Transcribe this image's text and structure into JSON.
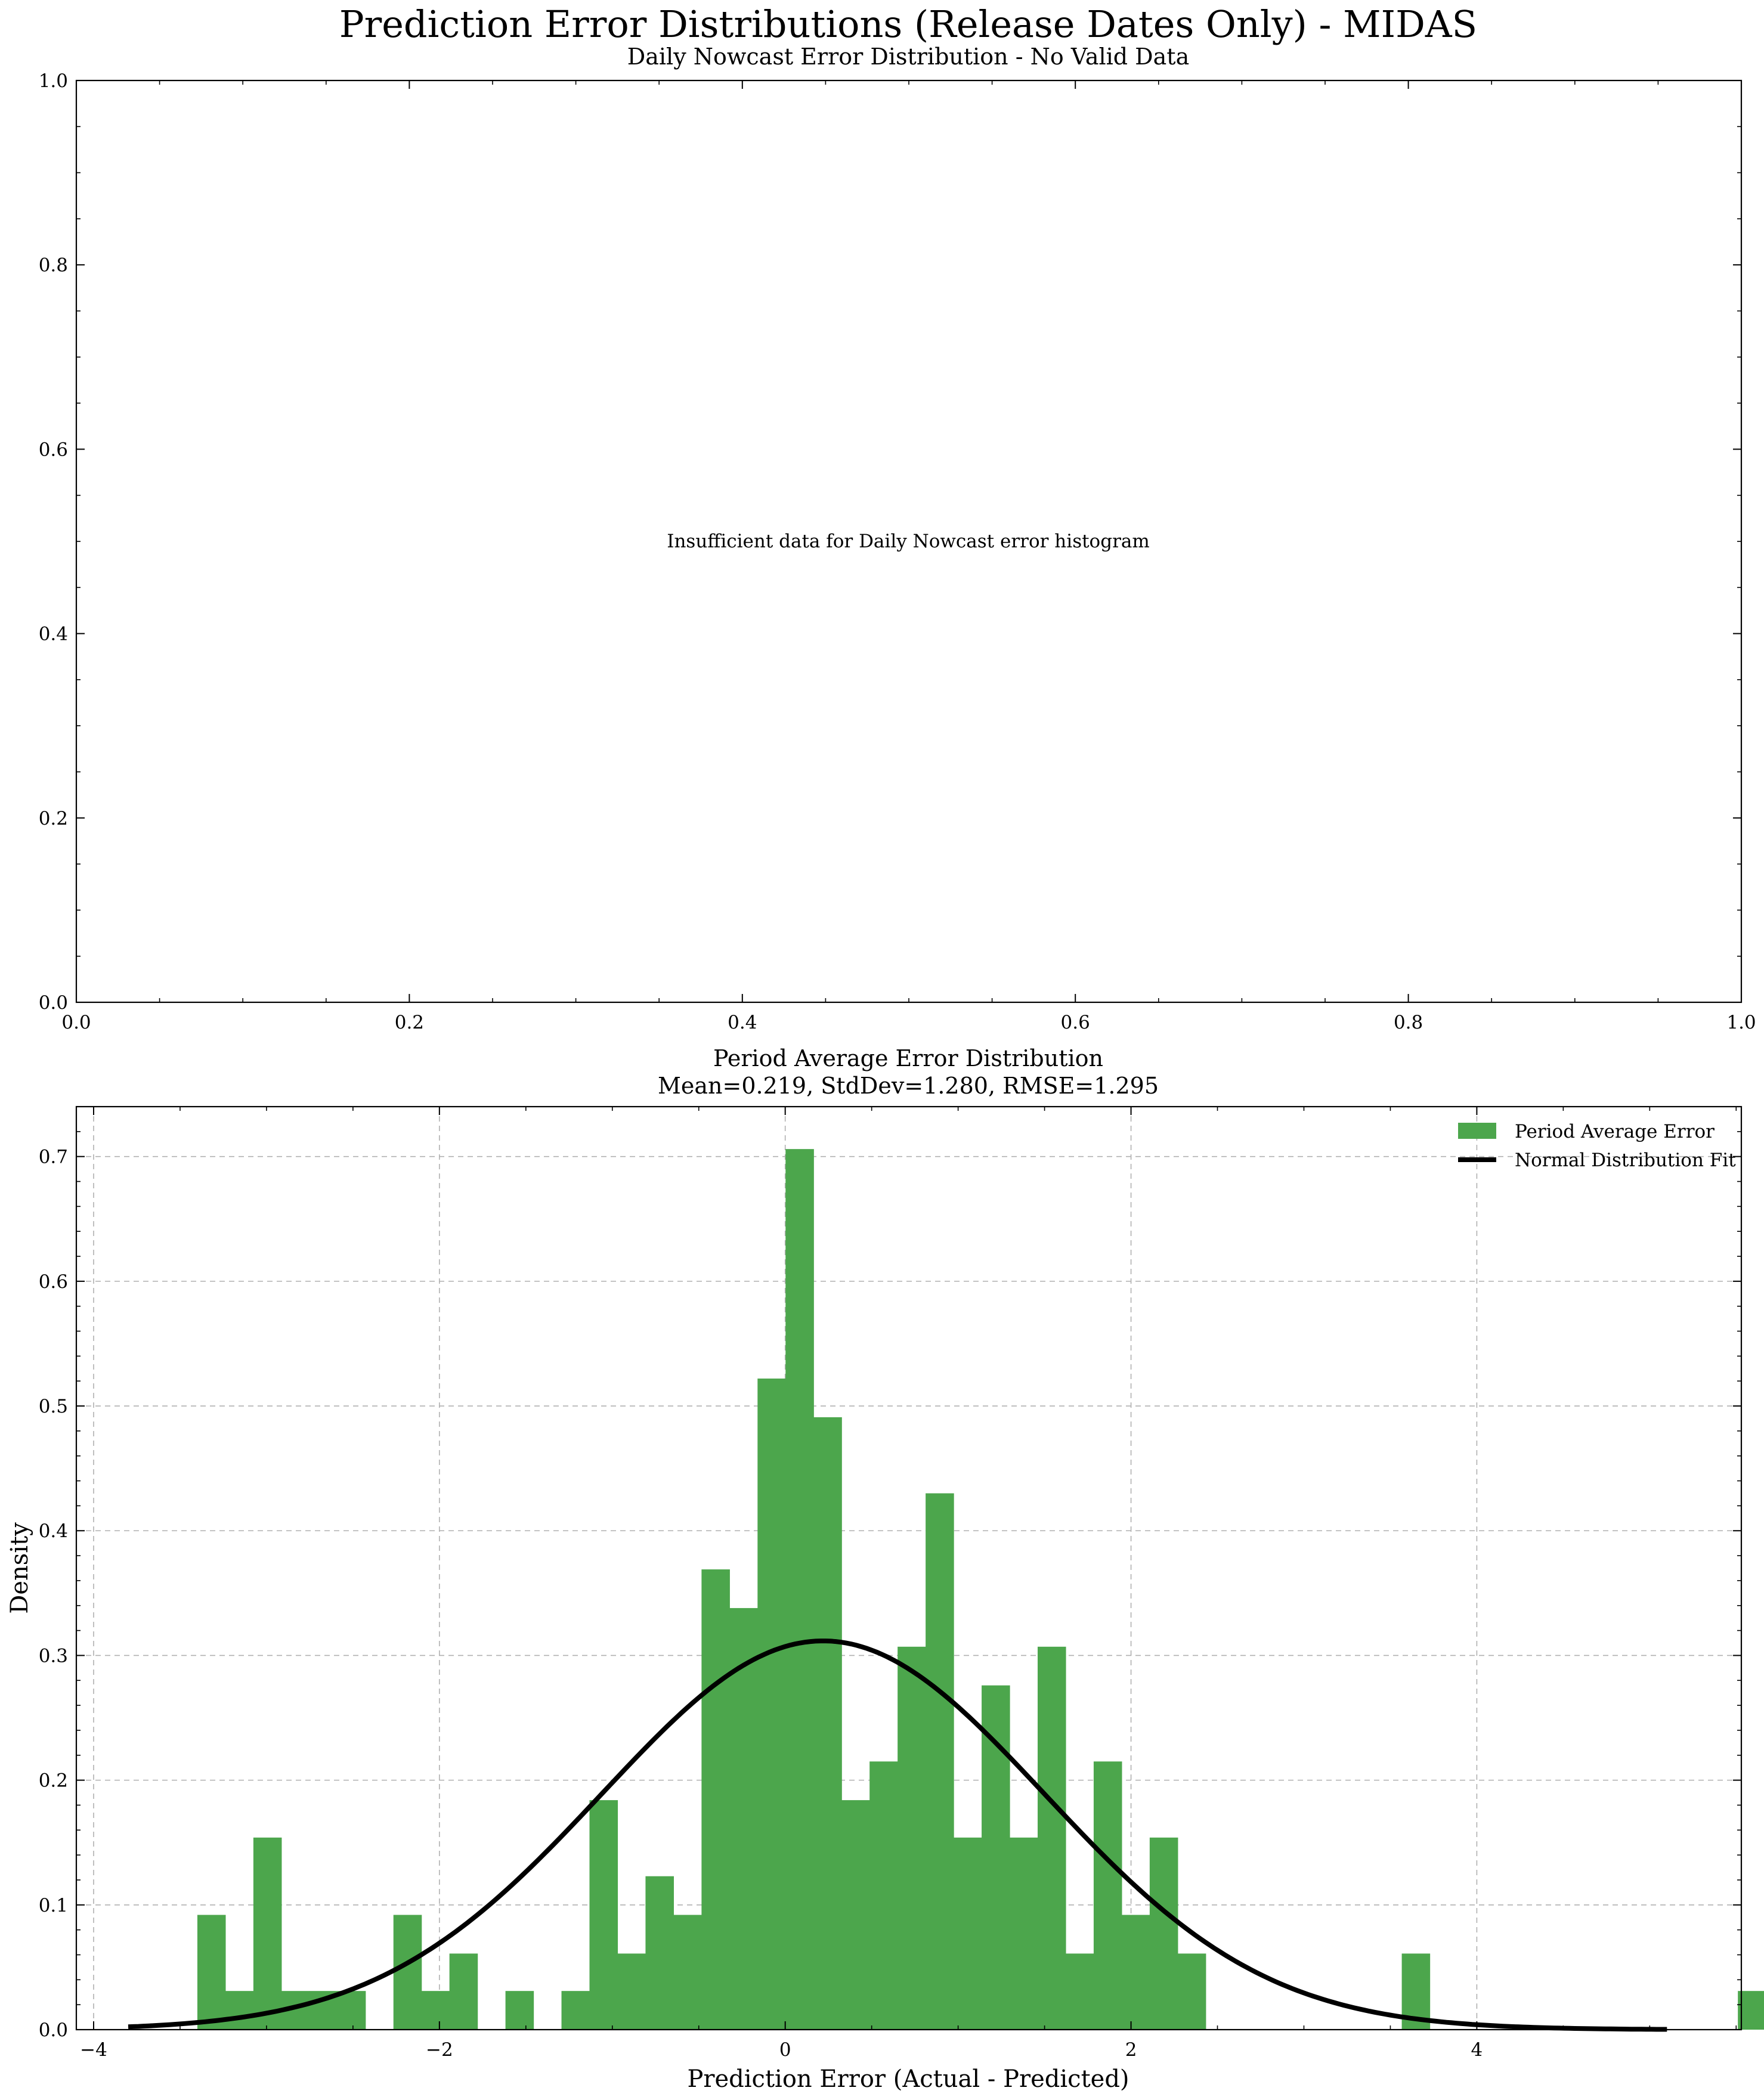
{
  "figure": {
    "suptitle": "Prediction Error Distributions (Release Dates Only) - MIDAS"
  },
  "chart_data": [
    {
      "type": "empty",
      "title": "Daily Nowcast Error Distribution - No Valid Data",
      "message": "Insufficient data for Daily Nowcast error histogram",
      "xlim": [
        0,
        1
      ],
      "ylim": [
        0,
        1
      ],
      "xticks": [
        "0.0",
        "0.2",
        "0.4",
        "0.6",
        "0.8",
        "1.0"
      ],
      "yticks": [
        "0.0",
        "0.2",
        "0.4",
        "0.6",
        "0.8",
        "1.0"
      ]
    },
    {
      "type": "bar",
      "title": "Period Average Error Distribution",
      "subtitle": "Mean=0.219, StdDev=1.280, RMSE=1.295",
      "xlabel": "Prediction Error (Actual - Predicted)",
      "ylabel": "Density",
      "xlim": [
        -4.1,
        5.53
      ],
      "ylim": [
        0,
        0.74
      ],
      "grid": true,
      "legend_position": "top-right",
      "xticks": [
        {
          "v": -4,
          "label": "−4"
        },
        {
          "v": -2,
          "label": "−2"
        },
        {
          "v": 0,
          "label": "0"
        },
        {
          "v": 2,
          "label": "2"
        },
        {
          "v": 4,
          "label": "4"
        }
      ],
      "yticks": [
        {
          "v": 0,
          "label": "0.0"
        },
        {
          "v": 0.1,
          "label": "0.1"
        },
        {
          "v": 0.2,
          "label": "0.2"
        },
        {
          "v": 0.3,
          "label": "0.3"
        },
        {
          "v": 0.4,
          "label": "0.4"
        },
        {
          "v": 0.5,
          "label": "0.5"
        },
        {
          "v": 0.6,
          "label": "0.6"
        },
        {
          "v": 0.7,
          "label": "0.7"
        }
      ],
      "bin_start": -3.4,
      "bin_width": 0.162,
      "values": [
        0.092,
        0.031,
        0.154,
        0.031,
        0.031,
        0.031,
        0,
        0.092,
        0.031,
        0.061,
        0,
        0.031,
        0,
        0.031,
        0.184,
        0.061,
        0.123,
        0.092,
        0.369,
        0.338,
        0.522,
        0.706,
        0.491,
        0.184,
        0.215,
        0.307,
        0.43,
        0.154,
        0.276,
        0.154,
        0.307,
        0.061,
        0.215,
        0.092,
        0.154,
        0.061,
        0,
        0,
        0,
        0,
        0,
        0,
        0,
        0.061,
        0,
        0,
        0,
        0,
        0,
        0,
        0,
        0,
        0,
        0,
        0,
        0.031
      ],
      "fit": {
        "name": "Normal Distribution Fit",
        "mean": 0.219,
        "std": 1.28,
        "x_range": [
          -3.8,
          5.1
        ]
      },
      "series": [
        {
          "name": "Period Average Error",
          "color": "#4ca64c"
        },
        {
          "name": "Normal Distribution Fit",
          "color": "#000000"
        }
      ]
    }
  ]
}
